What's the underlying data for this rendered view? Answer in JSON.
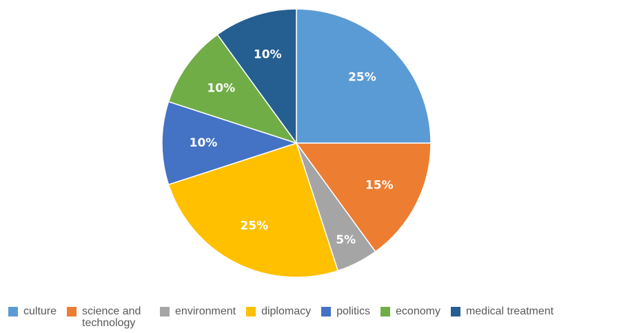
{
  "chart_data": {
    "type": "pie",
    "title": "",
    "legend_position": "bottom",
    "data_labels": "percent",
    "slices": [
      {
        "label": "culture",
        "value": 25,
        "display": "25%",
        "color": "#5B9BD5"
      },
      {
        "label": "science and technology",
        "value": 15,
        "display": "15%",
        "color": "#ED7D31"
      },
      {
        "label": "environment",
        "value": 5,
        "display": "5%",
        "color": "#A5A5A5"
      },
      {
        "label": "diplomacy",
        "value": 25,
        "display": "25%",
        "color": "#FFC000"
      },
      {
        "label": "politics",
        "value": 10,
        "display": "10%",
        "color": "#4472C4"
      },
      {
        "label": "economy",
        "value": 10,
        "display": "10%",
        "color": "#70AD47"
      },
      {
        "label": "medical treatment",
        "value": 10,
        "display": "10%",
        "color": "#255E91"
      }
    ]
  }
}
